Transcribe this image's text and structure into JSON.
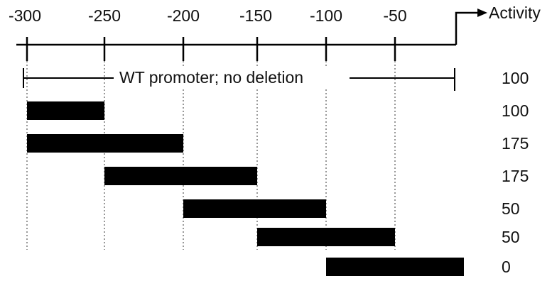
{
  "diagram": {
    "positions": [
      "-300",
      "-250",
      "-200",
      "-150",
      "-100",
      "-50"
    ],
    "activity_label": "Activity",
    "wt_label": "WT promoter; no deletion",
    "wt_activity": "100",
    "deletions": [
      {
        "from": -300,
        "to": -250,
        "activity": "100"
      },
      {
        "from": -300,
        "to": -200,
        "activity": "175"
      },
      {
        "from": -250,
        "to": -150,
        "activity": "175"
      },
      {
        "from": -200,
        "to": -100,
        "activity": "50"
      },
      {
        "from": -150,
        "to": -50,
        "activity": "50"
      },
      {
        "from": -100,
        "to": 0,
        "activity": "0"
      }
    ]
  }
}
